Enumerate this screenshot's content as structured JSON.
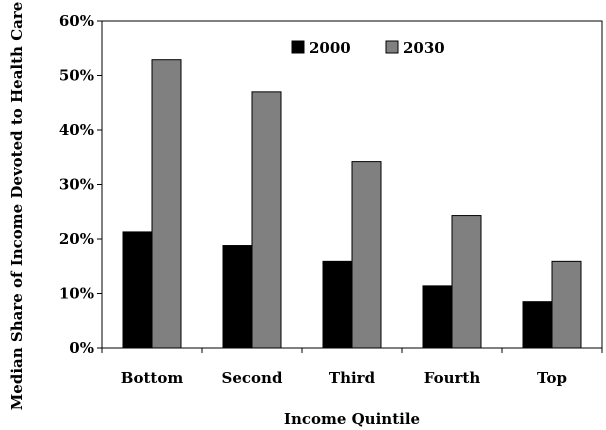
{
  "chart_data": {
    "type": "bar",
    "title": "",
    "xlabel": "Income Quintile",
    "ylabel": "Median Share of Income Devoted to Health Care",
    "categories": [
      "Bottom",
      "Second",
      "Third",
      "Fourth",
      "Top"
    ],
    "series": [
      {
        "name": "2000",
        "color": "#000000",
        "values": [
          21.3,
          18.8,
          15.9,
          11.4,
          8.5
        ]
      },
      {
        "name": "2030",
        "color": "#808080",
        "values": [
          52.9,
          47.0,
          34.2,
          24.3,
          15.9
        ]
      }
    ],
    "ylim": [
      0,
      60
    ],
    "yticks": [
      0,
      10,
      20,
      30,
      40,
      50,
      60
    ],
    "ytick_labels": [
      "0%",
      "10%",
      "20%",
      "30%",
      "40%",
      "50%",
      "60%"
    ],
    "grid": false,
    "legend_position": "top-right"
  }
}
